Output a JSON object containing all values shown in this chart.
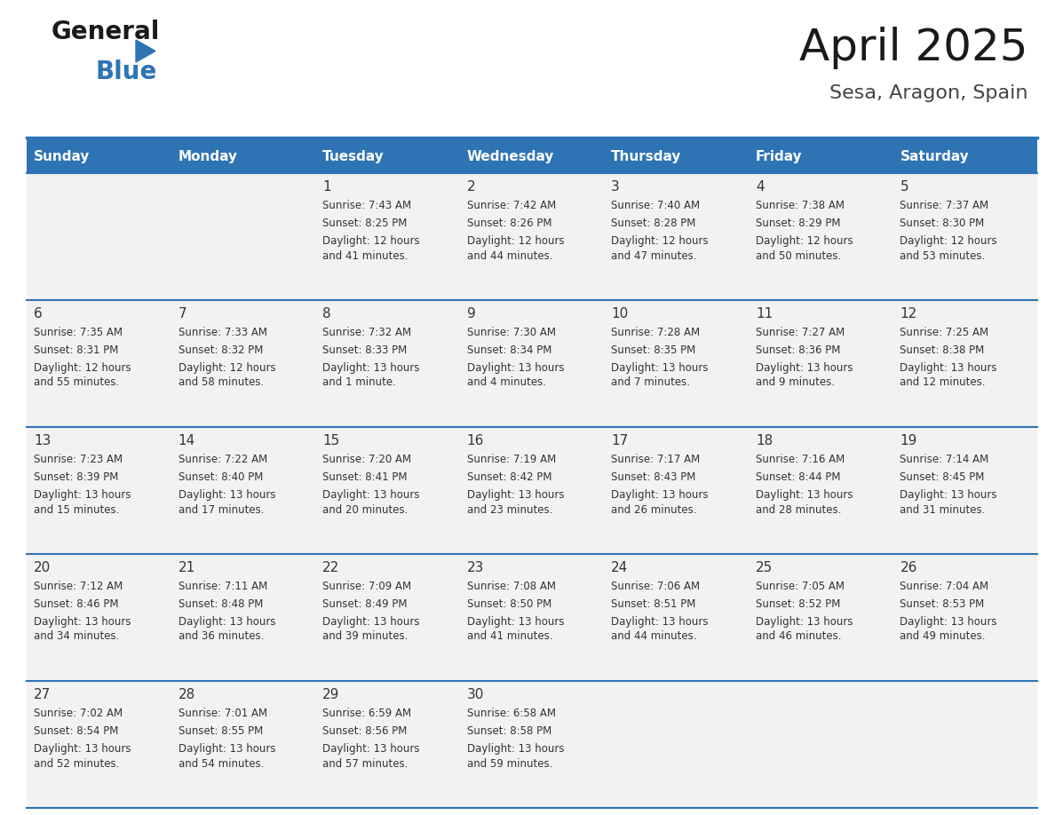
{
  "title": "April 2025",
  "subtitle": "Sesa, Aragon, Spain",
  "header_color": "#2E74B5",
  "header_text_color": "#FFFFFF",
  "cell_bg": "#F2F2F2",
  "day_text_color": "#333333",
  "info_text_color": "#333333",
  "line_color": "#2E74B5",
  "days_of_week": [
    "Sunday",
    "Monday",
    "Tuesday",
    "Wednesday",
    "Thursday",
    "Friday",
    "Saturday"
  ],
  "weeks": [
    [
      {
        "day": "",
        "sunrise": "",
        "sunset": "",
        "daylight": ""
      },
      {
        "day": "",
        "sunrise": "",
        "sunset": "",
        "daylight": ""
      },
      {
        "day": "1",
        "sunrise": "Sunrise: 7:43 AM",
        "sunset": "Sunset: 8:25 PM",
        "daylight": "Daylight: 12 hours\nand 41 minutes."
      },
      {
        "day": "2",
        "sunrise": "Sunrise: 7:42 AM",
        "sunset": "Sunset: 8:26 PM",
        "daylight": "Daylight: 12 hours\nand 44 minutes."
      },
      {
        "day": "3",
        "sunrise": "Sunrise: 7:40 AM",
        "sunset": "Sunset: 8:28 PM",
        "daylight": "Daylight: 12 hours\nand 47 minutes."
      },
      {
        "day": "4",
        "sunrise": "Sunrise: 7:38 AM",
        "sunset": "Sunset: 8:29 PM",
        "daylight": "Daylight: 12 hours\nand 50 minutes."
      },
      {
        "day": "5",
        "sunrise": "Sunrise: 7:37 AM",
        "sunset": "Sunset: 8:30 PM",
        "daylight": "Daylight: 12 hours\nand 53 minutes."
      }
    ],
    [
      {
        "day": "6",
        "sunrise": "Sunrise: 7:35 AM",
        "sunset": "Sunset: 8:31 PM",
        "daylight": "Daylight: 12 hours\nand 55 minutes."
      },
      {
        "day": "7",
        "sunrise": "Sunrise: 7:33 AM",
        "sunset": "Sunset: 8:32 PM",
        "daylight": "Daylight: 12 hours\nand 58 minutes."
      },
      {
        "day": "8",
        "sunrise": "Sunrise: 7:32 AM",
        "sunset": "Sunset: 8:33 PM",
        "daylight": "Daylight: 13 hours\nand 1 minute."
      },
      {
        "day": "9",
        "sunrise": "Sunrise: 7:30 AM",
        "sunset": "Sunset: 8:34 PM",
        "daylight": "Daylight: 13 hours\nand 4 minutes."
      },
      {
        "day": "10",
        "sunrise": "Sunrise: 7:28 AM",
        "sunset": "Sunset: 8:35 PM",
        "daylight": "Daylight: 13 hours\nand 7 minutes."
      },
      {
        "day": "11",
        "sunrise": "Sunrise: 7:27 AM",
        "sunset": "Sunset: 8:36 PM",
        "daylight": "Daylight: 13 hours\nand 9 minutes."
      },
      {
        "day": "12",
        "sunrise": "Sunrise: 7:25 AM",
        "sunset": "Sunset: 8:38 PM",
        "daylight": "Daylight: 13 hours\nand 12 minutes."
      }
    ],
    [
      {
        "day": "13",
        "sunrise": "Sunrise: 7:23 AM",
        "sunset": "Sunset: 8:39 PM",
        "daylight": "Daylight: 13 hours\nand 15 minutes."
      },
      {
        "day": "14",
        "sunrise": "Sunrise: 7:22 AM",
        "sunset": "Sunset: 8:40 PM",
        "daylight": "Daylight: 13 hours\nand 17 minutes."
      },
      {
        "day": "15",
        "sunrise": "Sunrise: 7:20 AM",
        "sunset": "Sunset: 8:41 PM",
        "daylight": "Daylight: 13 hours\nand 20 minutes."
      },
      {
        "day": "16",
        "sunrise": "Sunrise: 7:19 AM",
        "sunset": "Sunset: 8:42 PM",
        "daylight": "Daylight: 13 hours\nand 23 minutes."
      },
      {
        "day": "17",
        "sunrise": "Sunrise: 7:17 AM",
        "sunset": "Sunset: 8:43 PM",
        "daylight": "Daylight: 13 hours\nand 26 minutes."
      },
      {
        "day": "18",
        "sunrise": "Sunrise: 7:16 AM",
        "sunset": "Sunset: 8:44 PM",
        "daylight": "Daylight: 13 hours\nand 28 minutes."
      },
      {
        "day": "19",
        "sunrise": "Sunrise: 7:14 AM",
        "sunset": "Sunset: 8:45 PM",
        "daylight": "Daylight: 13 hours\nand 31 minutes."
      }
    ],
    [
      {
        "day": "20",
        "sunrise": "Sunrise: 7:12 AM",
        "sunset": "Sunset: 8:46 PM",
        "daylight": "Daylight: 13 hours\nand 34 minutes."
      },
      {
        "day": "21",
        "sunrise": "Sunrise: 7:11 AM",
        "sunset": "Sunset: 8:48 PM",
        "daylight": "Daylight: 13 hours\nand 36 minutes."
      },
      {
        "day": "22",
        "sunrise": "Sunrise: 7:09 AM",
        "sunset": "Sunset: 8:49 PM",
        "daylight": "Daylight: 13 hours\nand 39 minutes."
      },
      {
        "day": "23",
        "sunrise": "Sunrise: 7:08 AM",
        "sunset": "Sunset: 8:50 PM",
        "daylight": "Daylight: 13 hours\nand 41 minutes."
      },
      {
        "day": "24",
        "sunrise": "Sunrise: 7:06 AM",
        "sunset": "Sunset: 8:51 PM",
        "daylight": "Daylight: 13 hours\nand 44 minutes."
      },
      {
        "day": "25",
        "sunrise": "Sunrise: 7:05 AM",
        "sunset": "Sunset: 8:52 PM",
        "daylight": "Daylight: 13 hours\nand 46 minutes."
      },
      {
        "day": "26",
        "sunrise": "Sunrise: 7:04 AM",
        "sunset": "Sunset: 8:53 PM",
        "daylight": "Daylight: 13 hours\nand 49 minutes."
      }
    ],
    [
      {
        "day": "27",
        "sunrise": "Sunrise: 7:02 AM",
        "sunset": "Sunset: 8:54 PM",
        "daylight": "Daylight: 13 hours\nand 52 minutes."
      },
      {
        "day": "28",
        "sunrise": "Sunrise: 7:01 AM",
        "sunset": "Sunset: 8:55 PM",
        "daylight": "Daylight: 13 hours\nand 54 minutes."
      },
      {
        "day": "29",
        "sunrise": "Sunrise: 6:59 AM",
        "sunset": "Sunset: 8:56 PM",
        "daylight": "Daylight: 13 hours\nand 57 minutes."
      },
      {
        "day": "30",
        "sunrise": "Sunrise: 6:58 AM",
        "sunset": "Sunset: 8:58 PM",
        "daylight": "Daylight: 13 hours\nand 59 minutes."
      },
      {
        "day": "",
        "sunrise": "",
        "sunset": "",
        "daylight": ""
      },
      {
        "day": "",
        "sunrise": "",
        "sunset": "",
        "daylight": ""
      },
      {
        "day": "",
        "sunrise": "",
        "sunset": "",
        "daylight": ""
      }
    ]
  ],
  "background_color": "#FFFFFF"
}
